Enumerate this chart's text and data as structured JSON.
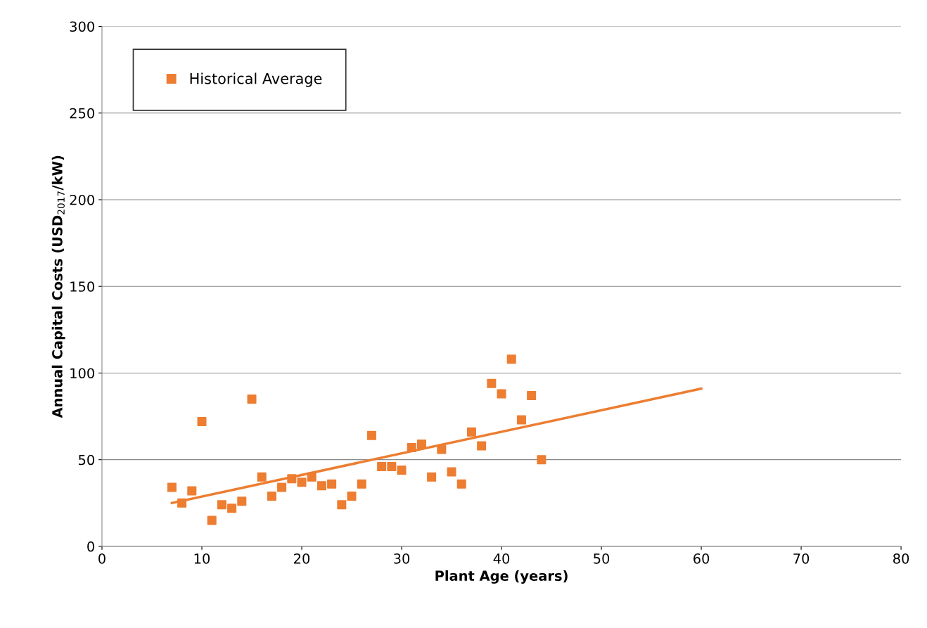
{
  "chart_data": {
    "type": "scatter",
    "xlabel": "Plant Age (years)",
    "ylabel": "Annual Capital Costs (USD$_{2017}$/kW)",
    "x": [
      7,
      8,
      9,
      10,
      11,
      12,
      13,
      14,
      15,
      16,
      17,
      18,
      19,
      20,
      21,
      22,
      23,
      24,
      25,
      26,
      27,
      28,
      29,
      30,
      31,
      32,
      33,
      34,
      35,
      36,
      37,
      38,
      39,
      40,
      41,
      42,
      43,
      44
    ],
    "series": [
      {
        "name": "Historical Average",
        "color": "#ed7d31",
        "marker": "square",
        "values": [
          34,
          25,
          32,
          72,
          15,
          24,
          22,
          26,
          85,
          40,
          29,
          34,
          39,
          37,
          40,
          35,
          36,
          24,
          29,
          36,
          64,
          46,
          46,
          44,
          57,
          59,
          40,
          56,
          43,
          36,
          66,
          58,
          94,
          88,
          108,
          73,
          87,
          50
        ]
      },
      {
        "type": "line",
        "color": "#ed7d31",
        "x": [
          7,
          60
        ],
        "values": [
          25,
          91
        ],
        "marker": "none",
        "line_style": "solid"
      }
    ],
    "xlim": [
      0,
      80
    ],
    "xticks": [
      0,
      10,
      20,
      30,
      40,
      50,
      60,
      70,
      80
    ],
    "ylim": [
      0,
      300
    ],
    "yticks": [
      0,
      50,
      100,
      150,
      200,
      250,
      300
    ],
    "grid": "y",
    "legend": "top left"
  }
}
